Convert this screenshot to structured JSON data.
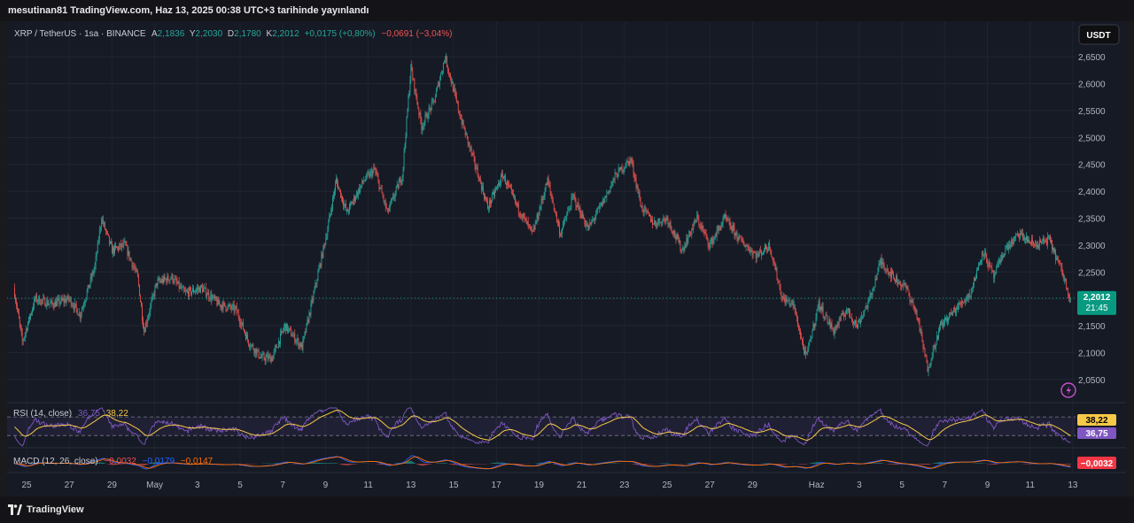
{
  "header": {
    "text": "mesutinan81 TradingView.com, Haz 13, 2025 00:38 UTC+3 tarihinde yayınlandı"
  },
  "legend": {
    "symbol": "XRP / TetherUS · 1sa · BINANCE",
    "o_label": "A",
    "o_value": "2,1836",
    "h_label": "Y",
    "h_value": "2,2030",
    "l_label": "D",
    "l_value": "2,1780",
    "c_label": "K",
    "c_value": "2,2012",
    "change": "+0,0175 (+0,80%)",
    "change2": "−0,0691 (−3,04%)"
  },
  "currency_button": "USDT",
  "price_label": {
    "value": "2,2012",
    "countdown": "21:45"
  },
  "rsi": {
    "label": "RSI (14, close)",
    "value1": "36,75",
    "value2": "38,22"
  },
  "macd": {
    "label": "MACD (12, 26, close)",
    "v1": "−0,0032",
    "v2": "−0,0179",
    "v3": "−0,0147",
    "axis_label": "−0,0032"
  },
  "footer": {
    "brand": "TradingView"
  },
  "colors": {
    "up": "#26a69a",
    "down": "#ef5350",
    "rsi": "#7e57c2",
    "rsi_ma": "#f7c948",
    "macd": "#2962ff",
    "signal": "#ff6d00",
    "price_badge": "#089981"
  },
  "chart_data": {
    "type": "candlestick",
    "title": "XRP / TetherUS · 1sa · BINANCE",
    "y_ticks": [
      "2,0500",
      "2,1000",
      "2,1500",
      "2,2000",
      "2,2500",
      "2,3000",
      "2,3500",
      "2,4000",
      "2,4500",
      "2,5000",
      "2,5500",
      "2,6000",
      "2,6500"
    ],
    "y_tick_values": [
      2.05,
      2.1,
      2.15,
      2.2,
      2.25,
      2.3,
      2.35,
      2.4,
      2.45,
      2.5,
      2.55,
      2.6,
      2.65
    ],
    "ylim": [
      2.025,
      2.67
    ],
    "x_ticks": [
      "25",
      "27",
      "29",
      "May",
      "3",
      "5",
      "7",
      "9",
      "11",
      "13",
      "15",
      "17",
      "19",
      "21",
      "23",
      "25",
      "27",
      "29",
      "Haz",
      "3",
      "5",
      "7",
      "9",
      "11",
      "13"
    ],
    "x_tick_days": [
      0,
      2,
      4,
      6,
      8,
      10,
      12,
      14,
      16,
      18,
      20,
      22,
      24,
      26,
      28,
      30,
      32,
      34,
      37,
      39,
      41,
      43,
      45,
      47,
      49
    ],
    "price_path": [
      [
        -0.6,
        2.22
      ],
      [
        -0.2,
        2.12
      ],
      [
        0.4,
        2.2
      ],
      [
        1.2,
        2.19
      ],
      [
        2.0,
        2.2
      ],
      [
        2.5,
        2.17
      ],
      [
        3.2,
        2.26
      ],
      [
        3.5,
        2.35
      ],
      [
        4.0,
        2.29
      ],
      [
        4.6,
        2.3
      ],
      [
        5.2,
        2.24
      ],
      [
        5.5,
        2.14
      ],
      [
        6.1,
        2.23
      ],
      [
        6.8,
        2.24
      ],
      [
        7.4,
        2.21
      ],
      [
        8.2,
        2.22
      ],
      [
        9.0,
        2.19
      ],
      [
        9.8,
        2.18
      ],
      [
        10.4,
        2.12
      ],
      [
        11.0,
        2.09
      ],
      [
        11.5,
        2.09
      ],
      [
        12.1,
        2.15
      ],
      [
        12.9,
        2.11
      ],
      [
        13.4,
        2.2
      ],
      [
        14.1,
        2.33
      ],
      [
        14.5,
        2.42
      ],
      [
        15.0,
        2.36
      ],
      [
        15.8,
        2.42
      ],
      [
        16.3,
        2.44
      ],
      [
        16.9,
        2.36
      ],
      [
        17.6,
        2.43
      ],
      [
        18.0,
        2.63
      ],
      [
        18.5,
        2.52
      ],
      [
        19.1,
        2.57
      ],
      [
        19.6,
        2.65
      ],
      [
        20.3,
        2.54
      ],
      [
        21.0,
        2.45
      ],
      [
        21.6,
        2.37
      ],
      [
        22.3,
        2.43
      ],
      [
        23.0,
        2.37
      ],
      [
        23.7,
        2.32
      ],
      [
        24.4,
        2.42
      ],
      [
        25.0,
        2.32
      ],
      [
        25.6,
        2.39
      ],
      [
        26.3,
        2.33
      ],
      [
        27.0,
        2.38
      ],
      [
        27.6,
        2.43
      ],
      [
        28.3,
        2.46
      ],
      [
        28.8,
        2.37
      ],
      [
        29.4,
        2.34
      ],
      [
        30.0,
        2.35
      ],
      [
        30.7,
        2.29
      ],
      [
        31.4,
        2.35
      ],
      [
        32.0,
        2.3
      ],
      [
        32.7,
        2.35
      ],
      [
        33.4,
        2.31
      ],
      [
        34.2,
        2.28
      ],
      [
        34.8,
        2.3
      ],
      [
        35.4,
        2.2
      ],
      [
        35.9,
        2.19
      ],
      [
        36.5,
        2.09
      ],
      [
        37.1,
        2.19
      ],
      [
        37.8,
        2.14
      ],
      [
        38.4,
        2.18
      ],
      [
        38.9,
        2.15
      ],
      [
        39.5,
        2.2
      ],
      [
        40.0,
        2.27
      ],
      [
        40.6,
        2.24
      ],
      [
        41.2,
        2.22
      ],
      [
        41.7,
        2.17
      ],
      [
        42.2,
        2.07
      ],
      [
        42.8,
        2.15
      ],
      [
        43.5,
        2.18
      ],
      [
        44.2,
        2.21
      ],
      [
        44.8,
        2.29
      ],
      [
        45.3,
        2.24
      ],
      [
        45.8,
        2.29
      ],
      [
        46.5,
        2.32
      ],
      [
        47.2,
        2.3
      ],
      [
        47.9,
        2.31
      ],
      [
        48.5,
        2.25
      ],
      [
        48.9,
        2.2
      ]
    ],
    "rsi": {
      "upper": 70,
      "lower": 30,
      "rsi_last": 36.75,
      "ma_last": 38.22
    },
    "macd": {
      "macd_last": -0.0032,
      "signal_last": -0.0179,
      "hist_last": -0.0147
    }
  }
}
